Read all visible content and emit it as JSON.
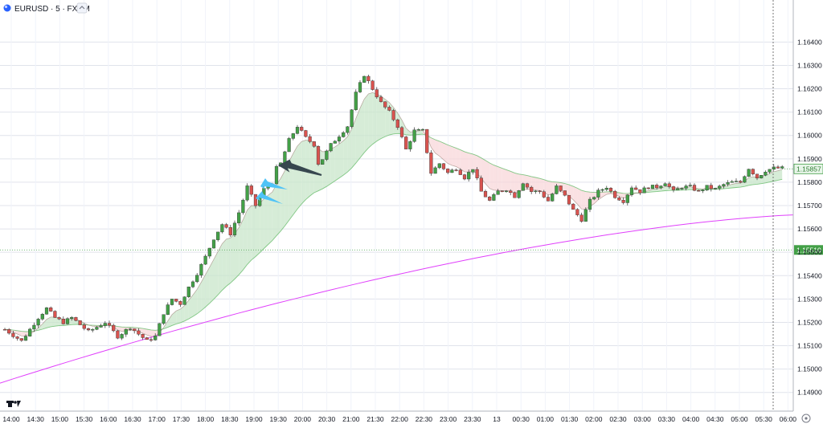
{
  "header": {
    "symbol_label": "EURUSD · 5 · FXCM",
    "icons": [
      "symbol-globe-icon",
      "collapse-icon"
    ]
  },
  "chart_data": {
    "type": "candlestick",
    "symbol": "EURUSD",
    "timeframe": "5",
    "source": "FXCM",
    "y_ticks": [
      "1.16400",
      "1.16300",
      "1.16200",
      "1.16100",
      "1.16000",
      "1.15900",
      "1.15800",
      "1.15700",
      "1.15600",
      "1.15500",
      "1.15400",
      "1.15300",
      "1.15200",
      "1.15100",
      "1.15000",
      "1.14900"
    ],
    "ylim": [
      1.1482,
      1.1658
    ],
    "x_ticks": [
      "14:00",
      "14:30",
      "15:00",
      "15:30",
      "16:00",
      "16:30",
      "17:00",
      "17:30",
      "18:00",
      "18:30",
      "19:00",
      "19:30",
      "20:00",
      "20:30",
      "21:00",
      "21:30",
      "22:00",
      "22:30",
      "23:00",
      "23:30",
      "13",
      "00:30",
      "01:00",
      "01:30",
      "02:00",
      "02:30",
      "03:00",
      "03:30",
      "04:00",
      "04:30",
      "05:00",
      "05:30",
      "06:00"
    ],
    "current_price_label": "1.15857",
    "current_price": 1.15857,
    "reference_price_label": "1.15510",
    "reference_price": 1.1551,
    "colors": {
      "up": "#43a047",
      "down": "#d9534f",
      "cloud": "#c8e6c9",
      "cloud_bear": "#f8d7da",
      "slow_ma": "#e040fb",
      "fast_ma": "#66bb6a"
    },
    "slow_ma": {
      "start": 1.1494,
      "end": 1.1566
    },
    "candle_path": [
      [
        0,
        1.1517
      ],
      [
        4,
        1.1512
      ],
      [
        8,
        1.1522
      ],
      [
        10,
        1.1526
      ],
      [
        12,
        1.1522
      ],
      [
        14,
        1.152
      ],
      [
        16,
        1.1522
      ],
      [
        20,
        1.1516
      ],
      [
        24,
        1.152
      ],
      [
        27,
        1.1514
      ],
      [
        30,
        1.1518
      ],
      [
        34,
        1.1512
      ],
      [
        36,
        1.1514
      ],
      [
        38,
        1.1524
      ],
      [
        40,
        1.153
      ],
      [
        42,
        1.1528
      ],
      [
        44,
        1.1535
      ],
      [
        46,
        1.1541
      ],
      [
        48,
        1.1548
      ],
      [
        50,
        1.1556
      ],
      [
        52,
        1.1562
      ],
      [
        54,
        1.1558
      ],
      [
        56,
        1.1567
      ],
      [
        58,
        1.1578
      ],
      [
        60,
        1.157
      ],
      [
        62,
        1.1577
      ],
      [
        64,
        1.158
      ],
      [
        65,
        1.1586
      ],
      [
        66,
        1.1588
      ],
      [
        68,
        1.1598
      ],
      [
        70,
        1.1604
      ],
      [
        72,
        1.1599
      ],
      [
        74,
        1.1596
      ],
      [
        75,
        1.1588
      ],
      [
        76,
        1.159
      ],
      [
        78,
        1.1596
      ],
      [
        80,
        1.16
      ],
      [
        82,
        1.1604
      ],
      [
        84,
        1.1618
      ],
      [
        86,
        1.1626
      ],
      [
        88,
        1.162
      ],
      [
        90,
        1.1614
      ],
      [
        92,
        1.161
      ],
      [
        94,
        1.1604
      ],
      [
        96,
        1.1594
      ],
      [
        98,
        1.1602
      ],
      [
        100,
        1.1602
      ],
      [
        102,
        1.1584
      ],
      [
        104,
        1.1588
      ],
      [
        106,
        1.1584
      ],
      [
        108,
        1.1586
      ],
      [
        110,
        1.1582
      ],
      [
        112,
        1.1586
      ],
      [
        114,
        1.1576
      ],
      [
        116,
        1.1572
      ],
      [
        118,
        1.1576
      ],
      [
        120,
        1.1577
      ],
      [
        122,
        1.1574
      ],
      [
        124,
        1.158
      ],
      [
        126,
        1.1576
      ],
      [
        128,
        1.1576
      ],
      [
        130,
        1.1572
      ],
      [
        132,
        1.1578
      ],
      [
        134,
        1.1574
      ],
      [
        136,
        1.1568
      ],
      [
        138,
        1.1564
      ],
      [
        140,
        1.1572
      ],
      [
        142,
        1.1576
      ],
      [
        144,
        1.1578
      ],
      [
        146,
        1.1574
      ],
      [
        148,
        1.1572
      ],
      [
        150,
        1.1578
      ],
      [
        152,
        1.1576
      ],
      [
        154,
        1.1578
      ],
      [
        156,
        1.1578
      ],
      [
        158,
        1.158
      ],
      [
        160,
        1.1576
      ],
      [
        162,
        1.1578
      ],
      [
        164,
        1.1578
      ],
      [
        166,
        1.1576
      ],
      [
        168,
        1.1578
      ],
      [
        170,
        1.1577
      ],
      [
        172,
        1.1579
      ],
      [
        174,
        1.158
      ],
      [
        176,
        1.158
      ],
      [
        178,
        1.1586
      ],
      [
        180,
        1.1582
      ],
      [
        182,
        1.1585
      ],
      [
        184,
        1.1586
      ],
      [
        186,
        1.1586
      ]
    ],
    "slots_total": 192,
    "annotations": [
      {
        "type": "arrow",
        "color": "#37474f",
        "name": "black-arrow-annotation"
      },
      {
        "type": "arrow",
        "color": "#4fc3f7",
        "name": "blue-arrow-annotation-1"
      },
      {
        "type": "arrow",
        "color": "#4fc3f7",
        "name": "blue-arrow-annotation-2"
      }
    ],
    "logo_text": "TV",
    "settings_icon": "gear-icon",
    "grid": true
  }
}
